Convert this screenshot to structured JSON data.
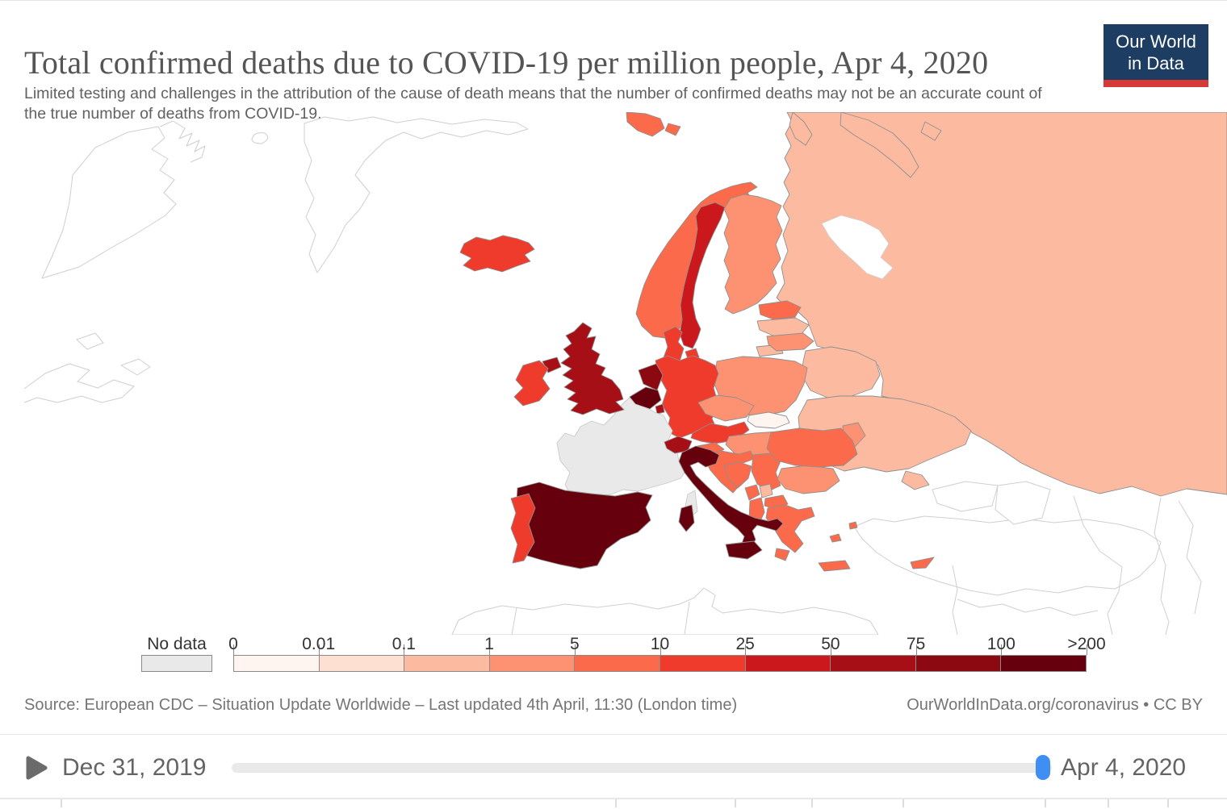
{
  "header": {
    "title": "Total confirmed deaths due to COVID-19 per million people, Apr 4, 2020",
    "subtitle": "Limited testing and challenges in the attribution of the cause of death means that the number of confirmed deaths may not be an accurate count of the true number of deaths from COVID-19.",
    "logo": {
      "line1": "Our World",
      "line2": "in Data",
      "bg_color": "#1d3d63",
      "accent_color": "#d73a36"
    }
  },
  "legend": {
    "no_data_label": "No data",
    "no_data_color": "#e9e9e9",
    "tick_labels": [
      "0",
      "0.01",
      "0.1",
      "1",
      "5",
      "10",
      "25",
      "50",
      "75",
      "100",
      ">200"
    ],
    "bin_colors": [
      "#fff5f0",
      "#fee0d2",
      "#fcbba1",
      "#fc9272",
      "#fb6a4a",
      "#ef3b2c",
      "#cb181d",
      "#a50f15",
      "#8c0912",
      "#67000d"
    ]
  },
  "map": {
    "border_color": "#8f8f8f",
    "outline_color": "#cfcfcf",
    "countries": {
      "iceland": {
        "label": "Iceland",
        "color": "#ef3b2c",
        "bin": "10–25"
      },
      "norway": {
        "label": "Norway",
        "color": "#fb6a4a",
        "bin": "5–10"
      },
      "sweden": {
        "label": "Sweden",
        "color": "#cb181d",
        "bin": "25–50"
      },
      "finland": {
        "label": "Finland",
        "color": "#fc9272",
        "bin": "1–5"
      },
      "denmark": {
        "label": "Denmark",
        "color": "#ef3b2c",
        "bin": "10–25"
      },
      "estonia": {
        "label": "Estonia",
        "color": "#fb6a4a",
        "bin": "5–10"
      },
      "latvia": {
        "label": "Latvia",
        "color": "#fcbba1",
        "bin": "0.1–1"
      },
      "lithuania": {
        "label": "Lithuania",
        "color": "#fc9272",
        "bin": "1–5"
      },
      "russia": {
        "label": "Russia",
        "color": "#fcbba1",
        "bin": "0.1–1"
      },
      "belarus": {
        "label": "Belarus",
        "color": "#fcbba1",
        "bin": "0.1–1"
      },
      "ukraine": {
        "label": "Ukraine",
        "color": "#fcbba1",
        "bin": "0.1–1"
      },
      "moldova": {
        "label": "Moldova",
        "color": "#fc9272",
        "bin": "1–5"
      },
      "poland": {
        "label": "Poland",
        "color": "#fc9272",
        "bin": "1–5"
      },
      "germany": {
        "label": "Germany",
        "color": "#ef3b2c",
        "bin": "10–25"
      },
      "netherlands": {
        "label": "Netherlands",
        "color": "#8c0912",
        "bin": "75–100"
      },
      "belgium": {
        "label": "Belgium",
        "color": "#67000d",
        "bin": "100–>200"
      },
      "luxembourg": {
        "label": "Luxembourg",
        "color": "#a50f15",
        "bin": "50–75"
      },
      "france": {
        "label": "France",
        "color": "#e9e9e9",
        "bin": "No data"
      },
      "switzerland": {
        "label": "Switzerland",
        "color": "#a50f15",
        "bin": "50–75"
      },
      "austria": {
        "label": "Austria",
        "color": "#ef3b2c",
        "bin": "10–25"
      },
      "czechia": {
        "label": "Czech Republic",
        "color": "#fc9272",
        "bin": "1–5"
      },
      "slovakia": {
        "label": "Slovakia",
        "color": "#fff5f0",
        "bin": "0–0.01"
      },
      "hungary": {
        "label": "Hungary",
        "color": "#fc9272",
        "bin": "1–5"
      },
      "slovenia": {
        "label": "Slovenia",
        "color": "#fb6a4a",
        "bin": "5–10"
      },
      "croatia": {
        "label": "Croatia",
        "color": "#fb6a4a",
        "bin": "5–10"
      },
      "bosnia": {
        "label": "Bosnia and Herzegovina",
        "color": "#fb6a4a",
        "bin": "5–10"
      },
      "serbia": {
        "label": "Serbia",
        "color": "#fb6a4a",
        "bin": "5–10"
      },
      "montenegro": {
        "label": "Montenegro",
        "color": "#fb6a4a",
        "bin": "5–10"
      },
      "kosovo": {
        "label": "Kosovo",
        "color": "#fcbba1",
        "bin": "0.1–1"
      },
      "north_macedonia": {
        "label": "North Macedonia",
        "color": "#fb6a4a",
        "bin": "5–10"
      },
      "albania": {
        "label": "Albania",
        "color": "#fb6a4a",
        "bin": "5–10"
      },
      "bulgaria": {
        "label": "Bulgaria",
        "color": "#fc9272",
        "bin": "1–5"
      },
      "romania": {
        "label": "Romania",
        "color": "#fb6a4a",
        "bin": "5–10"
      },
      "greece": {
        "label": "Greece",
        "color": "#fb6a4a",
        "bin": "5–10"
      },
      "cyprus": {
        "label": "Cyprus",
        "color": "#fb6a4a",
        "bin": "5–10"
      },
      "uk": {
        "label": "United Kingdom",
        "color": "#a50f15",
        "bin": "50–75"
      },
      "ireland": {
        "label": "Ireland",
        "color": "#ef3b2c",
        "bin": "10–25"
      },
      "spain": {
        "label": "Spain",
        "color": "#67000d",
        "bin": "100–>200"
      },
      "portugal": {
        "label": "Portugal",
        "color": "#ef3b2c",
        "bin": "10–25"
      },
      "italy": {
        "label": "Italy",
        "color": "#67000d",
        "bin": "100–>200"
      }
    }
  },
  "footer": {
    "source": "Source: European CDC – Situation Update Worldwide – Last updated 4th April, 11:30 (London time)",
    "link": "OurWorldInData.org/coronavirus • CC BY"
  },
  "timeline": {
    "start_label": "Dec 31, 2019",
    "end_label": "Apr 4, 2020",
    "play_color": "#6b6b6b",
    "track_color": "#e9e9e9",
    "handle_color": "#3f8ef3"
  }
}
